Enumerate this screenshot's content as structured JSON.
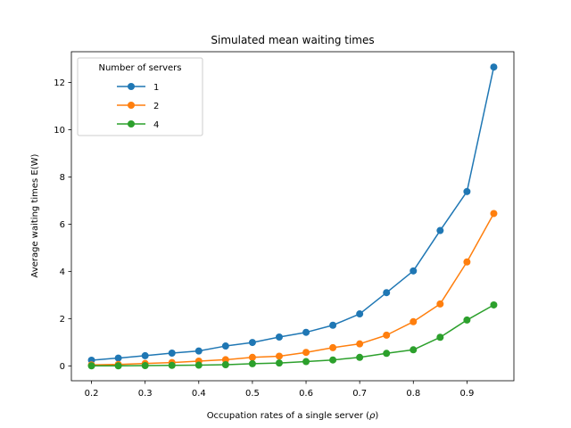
{
  "chart_data": {
    "type": "line",
    "title": "Simulated mean waiting times",
    "xlabel": "Occupation rates of a single server (ρ)",
    "xlabel_main": "Occupation rates of a single server (",
    "xlabel_symbol": "ρ",
    "xlabel_tail": ")",
    "ylabel": "Average waiting times E(W)",
    "xlim": [
      0.1625,
      0.9875
    ],
    "ylim": [
      -0.63,
      13.3
    ],
    "xticks": [
      0.2,
      0.3,
      0.4,
      0.5,
      0.6,
      0.7,
      0.8,
      0.9
    ],
    "yticks": [
      0,
      2,
      4,
      6,
      8,
      10,
      12
    ],
    "grid": false,
    "legend": {
      "title": "Number of servers",
      "placement": "top-left"
    },
    "x": [
      0.2,
      0.25,
      0.3,
      0.35,
      0.4,
      0.45,
      0.5,
      0.55,
      0.6,
      0.65,
      0.7,
      0.75,
      0.8,
      0.85,
      0.9,
      0.95
    ],
    "series": [
      {
        "name": "1",
        "color": "#1f77b4",
        "marker": "circle",
        "values": [
          0.24,
          0.33,
          0.43,
          0.54,
          0.63,
          0.84,
          0.99,
          1.22,
          1.42,
          1.72,
          2.2,
          3.1,
          4.02,
          5.73,
          7.38,
          12.65
        ]
      },
      {
        "name": "2",
        "color": "#ff7f0e",
        "marker": "circle",
        "values": [
          0.04,
          0.06,
          0.1,
          0.14,
          0.2,
          0.26,
          0.36,
          0.41,
          0.57,
          0.77,
          0.93,
          1.3,
          1.87,
          2.62,
          4.4,
          6.45
        ]
      },
      {
        "name": "4",
        "color": "#2ca02c",
        "marker": "circle",
        "values": [
          0.0,
          0.0,
          0.01,
          0.02,
          0.03,
          0.05,
          0.09,
          0.12,
          0.18,
          0.25,
          0.36,
          0.53,
          0.68,
          1.21,
          1.94,
          2.58
        ]
      }
    ]
  }
}
